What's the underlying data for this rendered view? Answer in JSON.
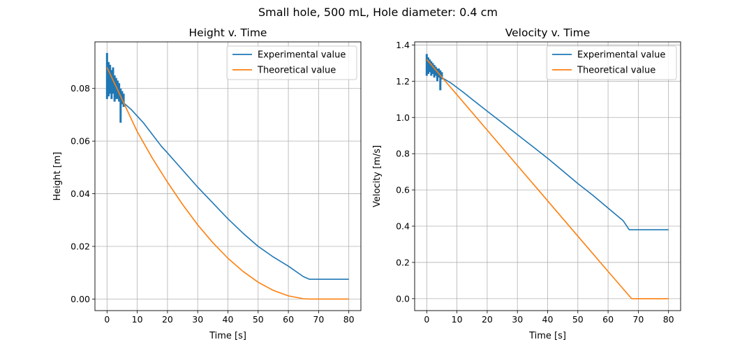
{
  "figure": {
    "suptitle": "Small hole, 500 mL, Hole diameter: 0.4 cm"
  },
  "colors": {
    "experimental": "#1f77b4",
    "theoretical": "#ff7f0e",
    "grid": "#b0b0b0"
  },
  "chart_data": [
    {
      "type": "line",
      "title": "Height v. Time",
      "xlabel": "Time [s]",
      "ylabel": "Height [m]",
      "xlim": [
        -4,
        84
      ],
      "ylim": [
        -0.0044,
        0.0977
      ],
      "xticks": [
        0,
        10,
        20,
        30,
        40,
        50,
        60,
        70,
        80
      ],
      "yticks": [
        0.0,
        0.02,
        0.04,
        0.06,
        0.08
      ],
      "ytick_labels": [
        "0.00",
        "0.02",
        "0.04",
        "0.06",
        "0.08"
      ],
      "grid": true,
      "legend": "upper right",
      "series": [
        {
          "name": "Experimental value",
          "color": "#1f77b4",
          "x": [
            0,
            0.3,
            0.6,
            1.0,
            1.5,
            2.0,
            3.0,
            4.0,
            5.0,
            6.0,
            8.0,
            10.0,
            12.0,
            15.0,
            18.0,
            20.0,
            25.0,
            30.0,
            35.0,
            40.0,
            45.0,
            50.0,
            55.0,
            60.0,
            65.0,
            67.0,
            70.0,
            75.0,
            80.0
          ],
          "y": [
            0.085,
            0.09,
            0.083,
            0.086,
            0.08,
            0.084,
            0.078,
            0.079,
            0.075,
            0.074,
            0.072,
            0.0695,
            0.067,
            0.0625,
            0.058,
            0.0555,
            0.049,
            0.0425,
            0.0365,
            0.0305,
            0.025,
            0.02,
            0.016,
            0.0125,
            0.0085,
            0.0075,
            0.0075,
            0.0075,
            0.0075
          ],
          "noise": [
            {
              "x": 0.0,
              "y_min": 0.076,
              "y_max": 0.0935
            },
            {
              "x": 0.5,
              "y_min": 0.077,
              "y_max": 0.09
            },
            {
              "x": 1.0,
              "y_min": 0.078,
              "y_max": 0.089
            },
            {
              "x": 1.5,
              "y_min": 0.076,
              "y_max": 0.087
            },
            {
              "x": 2.0,
              "y_min": 0.078,
              "y_max": 0.088
            },
            {
              "x": 2.5,
              "y_min": 0.075,
              "y_max": 0.085
            },
            {
              "x": 3.0,
              "y_min": 0.076,
              "y_max": 0.084
            },
            {
              "x": 3.5,
              "y_min": 0.076,
              "y_max": 0.083
            },
            {
              "x": 4.0,
              "y_min": 0.075,
              "y_max": 0.082
            },
            {
              "x": 4.5,
              "y_min": 0.067,
              "y_max": 0.08
            },
            {
              "x": 5.0,
              "y_min": 0.074,
              "y_max": 0.079
            },
            {
              "x": 5.5,
              "y_min": 0.073,
              "y_max": 0.078
            }
          ]
        },
        {
          "name": "Theoretical value",
          "color": "#ff7f0e",
          "x": [
            0,
            5,
            10,
            15,
            20,
            25,
            30,
            35,
            40,
            45,
            50,
            55,
            60,
            65,
            67,
            70,
            75,
            80
          ],
          "y": [
            0.088,
            0.0758,
            0.0636,
            0.0535,
            0.0444,
            0.0359,
            0.0282,
            0.0214,
            0.0155,
            0.0105,
            0.0064,
            0.0033,
            0.0012,
            0.0001,
            0.0,
            0.0,
            0.0,
            0.0
          ]
        }
      ]
    },
    {
      "type": "line",
      "title": "Velocity v. Time",
      "xlabel": "Time [s]",
      "ylabel": "Velocity [m/s]",
      "xlim": [
        -4,
        84
      ],
      "ylim": [
        -0.066,
        1.417
      ],
      "xticks": [
        0,
        10,
        20,
        30,
        40,
        50,
        60,
        70,
        80
      ],
      "yticks": [
        0.0,
        0.2,
        0.4,
        0.6,
        0.8,
        1.0,
        1.2,
        1.4
      ],
      "ytick_labels": [
        "0.0",
        "0.2",
        "0.4",
        "0.6",
        "0.8",
        "1.0",
        "1.2",
        "1.4"
      ],
      "grid": true,
      "legend": "upper right",
      "series": [
        {
          "name": "Experimental value",
          "color": "#1f77b4",
          "x": [
            0,
            0.5,
            1.0,
            2.0,
            3.0,
            4.0,
            5.0,
            6.0,
            8.0,
            10.0,
            12.0,
            15.0,
            20.0,
            25.0,
            30.0,
            35.0,
            40.0,
            45.0,
            50.0,
            55.0,
            60.0,
            65.0,
            67.0,
            70.0,
            75.0,
            80.0
          ],
          "y": [
            1.3,
            1.33,
            1.28,
            1.27,
            1.25,
            1.23,
            1.22,
            1.21,
            1.19,
            1.165,
            1.14,
            1.1,
            1.035,
            0.97,
            0.905,
            0.84,
            0.775,
            0.705,
            0.635,
            0.57,
            0.5,
            0.43,
            0.38,
            0.38,
            0.38,
            0.38
          ],
          "noise": [
            {
              "x": 0.0,
              "y_min": 1.23,
              "y_max": 1.35
            },
            {
              "x": 0.5,
              "y_min": 1.24,
              "y_max": 1.33
            },
            {
              "x": 1.0,
              "y_min": 1.25,
              "y_max": 1.32
            },
            {
              "x": 1.5,
              "y_min": 1.23,
              "y_max": 1.31
            },
            {
              "x": 2.0,
              "y_min": 1.24,
              "y_max": 1.3
            },
            {
              "x": 2.5,
              "y_min": 1.22,
              "y_max": 1.29
            },
            {
              "x": 3.0,
              "y_min": 1.23,
              "y_max": 1.28
            },
            {
              "x": 3.5,
              "y_min": 1.2,
              "y_max": 1.27
            },
            {
              "x": 4.0,
              "y_min": 1.22,
              "y_max": 1.27
            },
            {
              "x": 4.5,
              "y_min": 1.15,
              "y_max": 1.26
            },
            {
              "x": 5.0,
              "y_min": 1.21,
              "y_max": 1.25
            }
          ]
        },
        {
          "name": "Theoretical value",
          "color": "#ff7f0e",
          "x": [
            0,
            10,
            20,
            30,
            40,
            50,
            60,
            67.8,
            70,
            75,
            80
          ],
          "y": [
            1.32,
            1.125,
            0.93,
            0.735,
            0.54,
            0.345,
            0.15,
            0.0,
            0.0,
            0.0,
            0.0
          ]
        }
      ]
    }
  ]
}
